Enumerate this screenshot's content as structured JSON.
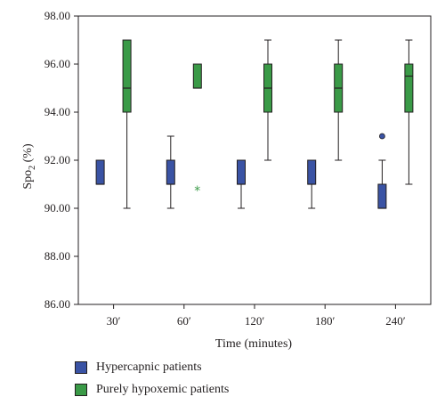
{
  "chart_data": {
    "type": "boxplot",
    "title": "",
    "xlabel": "Time (minutes)",
    "ylabel_main": "Spo",
    "ylabel_sub": "2",
    "ylabel_unit": " (%)",
    "ylim": [
      86,
      98
    ],
    "yticks": [
      "86.00",
      "88.00",
      "90.00",
      "92.00",
      "94.00",
      "96.00",
      "98.00"
    ],
    "categories": [
      "30′",
      "60′",
      "120′",
      "180′",
      "240′"
    ],
    "grid": false,
    "legend_position": "bottom-left",
    "series": [
      {
        "name": "Hypercapnic patients",
        "color": "#3a53a4",
        "boxes": [
          {
            "min": 91,
            "q1": 91,
            "median": 91,
            "q3": 92,
            "max": 92,
            "outliers": []
          },
          {
            "min": 90,
            "q1": 91,
            "median": 91,
            "q3": 92,
            "max": 93,
            "outliers": []
          },
          {
            "min": 90,
            "q1": 91,
            "median": 91,
            "q3": 92,
            "max": 92,
            "outliers": []
          },
          {
            "min": 90,
            "q1": 91,
            "median": 91,
            "q3": 92,
            "max": 92,
            "outliers": []
          },
          {
            "min": 90,
            "q1": 90,
            "median": 90,
            "q3": 91,
            "max": 92,
            "outliers": [
              {
                "value": 93,
                "marker": "circle"
              }
            ]
          }
        ]
      },
      {
        "name": "Purely hypoxemic patients",
        "color": "#3a9a47",
        "boxes": [
          {
            "min": 90,
            "q1": 94,
            "median": 95,
            "q3": 97,
            "max": 97,
            "outliers": []
          },
          {
            "min": 95,
            "q1": 95,
            "median": 95,
            "q3": 96,
            "max": 96,
            "outliers": [
              {
                "value": 90.75,
                "marker": "asterisk"
              }
            ]
          },
          {
            "min": 92,
            "q1": 94,
            "median": 95,
            "q3": 96,
            "max": 97,
            "outliers": []
          },
          {
            "min": 92,
            "q1": 94,
            "median": 95,
            "q3": 96,
            "max": 97,
            "outliers": []
          },
          {
            "min": 91,
            "q1": 94,
            "median": 95.5,
            "q3": 96,
            "max": 97,
            "outliers": []
          }
        ]
      }
    ]
  }
}
